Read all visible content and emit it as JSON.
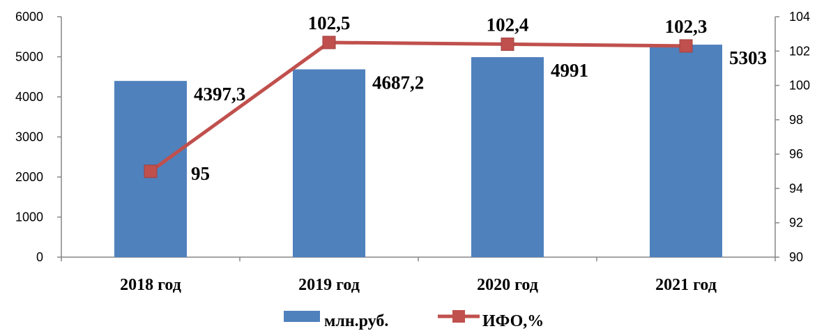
{
  "chart_data": {
    "type": "bar+line",
    "categories": [
      "2018 год",
      "2019 год",
      "2020 год",
      "2021 год"
    ],
    "series": [
      {
        "name": "млн.руб.",
        "type": "bar",
        "axis": "left",
        "values": [
          4397.3,
          4687.2,
          4991,
          5303
        ],
        "labels": [
          "4397,3",
          "4687,2",
          "4991",
          "5303"
        ],
        "color": "#4F81BD"
      },
      {
        "name": "ИФО,%",
        "type": "line",
        "axis": "right",
        "values": [
          95,
          102.5,
          102.4,
          102.3
        ],
        "labels": [
          "95",
          "102,5",
          "102,4",
          "102,3"
        ],
        "color": "#C0504D"
      }
    ],
    "y_left": {
      "min": 0,
      "max": 6000,
      "ticks": [
        "0",
        "1000",
        "2000",
        "3000",
        "4000",
        "5000",
        "6000"
      ]
    },
    "y_right": {
      "min": 90,
      "max": 104,
      "ticks": [
        "90",
        "92",
        "94",
        "96",
        "98",
        "100",
        "102",
        "104"
      ]
    },
    "grid": false,
    "legend_position": "bottom"
  }
}
